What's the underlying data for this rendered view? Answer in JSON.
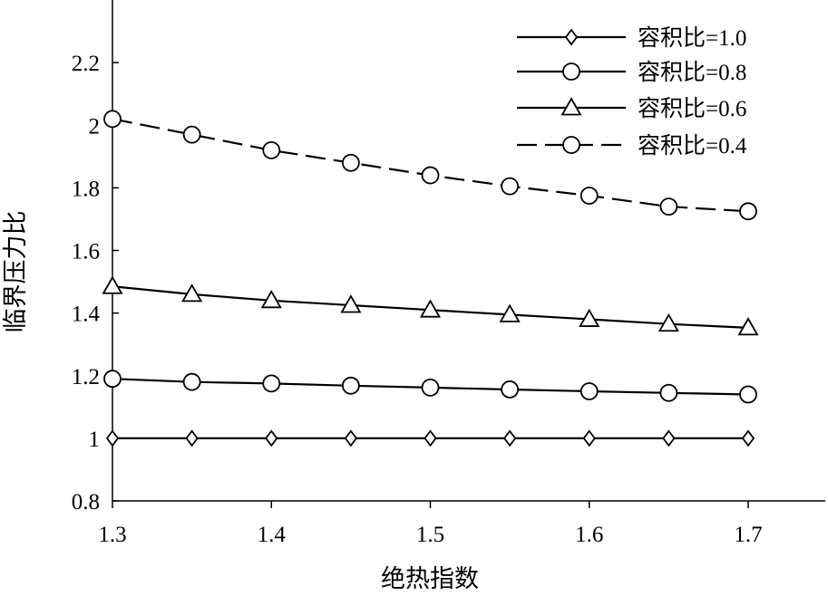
{
  "chart_data": {
    "type": "line",
    "title": "",
    "xlabel": "绝热指数",
    "ylabel": "临界压力比",
    "xlim": [
      1.3,
      1.7
    ],
    "ylim": [
      0.8,
      2.4
    ],
    "xticks": [
      1.3,
      1.4,
      1.5,
      1.6,
      1.7
    ],
    "xtick_labels": [
      "1.3",
      "1.4",
      "1.5",
      "1.6",
      "1.7"
    ],
    "yticks": [
      0.8,
      1.0,
      1.2,
      1.4,
      1.6,
      1.8,
      2.0,
      2.2
    ],
    "ytick_labels": [
      "0.8",
      "1",
      "1.2",
      "1.4",
      "1.6",
      "1.8",
      "2",
      "2.2"
    ],
    "grid": false,
    "legend_position": "top-right",
    "x": [
      1.3,
      1.35,
      1.4,
      1.45,
      1.5,
      1.55,
      1.6,
      1.65,
      1.7
    ],
    "series": [
      {
        "name": "容积比=1.0",
        "marker": "diamond",
        "line": "solid",
        "values": [
          1.0,
          1.0,
          1.0,
          1.0,
          1.0,
          1.0,
          1.0,
          1.0,
          1.0
        ]
      },
      {
        "name": "容积比=0.8",
        "marker": "circle",
        "line": "solid",
        "values": [
          1.19,
          1.18,
          1.175,
          1.168,
          1.162,
          1.156,
          1.15,
          1.145,
          1.14
        ]
      },
      {
        "name": "容积比=0.6",
        "marker": "triangle",
        "line": "solid",
        "values": [
          1.485,
          1.46,
          1.44,
          1.425,
          1.41,
          1.395,
          1.38,
          1.365,
          1.353
        ]
      },
      {
        "name": "容积比=0.4",
        "marker": "circle",
        "line": "dashed",
        "values": [
          2.02,
          1.97,
          1.92,
          1.88,
          1.84,
          1.805,
          1.775,
          1.74,
          1.725
        ]
      }
    ],
    "colors": {
      "line": "#000000",
      "marker_fill": "#ffffff",
      "background": "#ffffff"
    }
  }
}
